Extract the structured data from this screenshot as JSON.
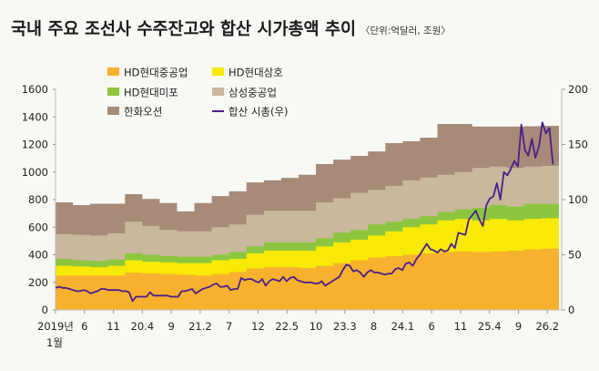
{
  "chart_data": {
    "type": "area",
    "title": "국내 주요 조선사 수주잔고와 합산 시가총액 추이",
    "subtitle": "〈단위:억달러, 조원〉",
    "x_start": 2019.0,
    "x_end": 2026.25,
    "x_tick_labels": [
      "2019년",
      "6",
      "11",
      "20.4",
      "9",
      "21.2",
      "7",
      "12",
      "22.5",
      "10",
      "23.3",
      "8",
      "24.1",
      "6",
      "11",
      "25.4",
      "9",
      "26.2"
    ],
    "x_tick_values": [
      2019.0,
      2019.417,
      2019.833,
      2020.25,
      2020.667,
      2021.083,
      2021.5,
      2021.917,
      2022.333,
      2022.75,
      2023.167,
      2023.583,
      2024.0,
      2024.417,
      2024.833,
      2025.25,
      2025.667,
      2026.083
    ],
    "x_sub_label": "1월",
    "left_axis": {
      "ylim": [
        0,
        1600
      ],
      "ticks": [
        "0",
        "200",
        "400",
        "600",
        "800",
        "1000",
        "1200",
        "1400",
        "1600"
      ]
    },
    "right_axis": {
      "ylim": [
        0,
        200
      ],
      "ticks": [
        "0",
        "50",
        "100",
        "150",
        "200"
      ]
    },
    "stack_period": "quarter",
    "stack_cumulative_tops": {
      "HD현대중공업": [
        250,
        250,
        250,
        250,
        270,
        265,
        260,
        255,
        250,
        260,
        275,
        300,
        310,
        310,
        305,
        320,
        340,
        360,
        380,
        390,
        400,
        410,
        420,
        425,
        420,
        425,
        430,
        440,
        445
      ],
      "HD현대삼호": [
        320,
        315,
        310,
        320,
        360,
        350,
        345,
        340,
        340,
        360,
        370,
        410,
        430,
        430,
        430,
        460,
        490,
        510,
        540,
        570,
        600,
        620,
        650,
        660,
        650,
        660,
        650,
        660,
        665
      ],
      "HD현대미포": [
        370,
        360,
        355,
        365,
        410,
        400,
        390,
        385,
        385,
        400,
        420,
        460,
        490,
        490,
        490,
        520,
        560,
        580,
        620,
        640,
        660,
        680,
        710,
        730,
        740,
        760,
        750,
        770,
        770
      ],
      "삼성중공업": [
        550,
        545,
        540,
        555,
        640,
        610,
        580,
        570,
        570,
        600,
        620,
        690,
        720,
        720,
        720,
        780,
        810,
        850,
        870,
        900,
        940,
        960,
        980,
        1000,
        1030,
        1040,
        1030,
        1040,
        1045
      ],
      "한화오션": [
        780,
        760,
        770,
        770,
        840,
        805,
        775,
        715,
        775,
        826,
        860,
        925,
        940,
        958,
        980,
        1058,
        1090,
        1117,
        1150,
        1210,
        1223,
        1250,
        1349,
        1349,
        1330,
        1330,
        1330,
        1332,
        1335
      ]
    },
    "series": [
      {
        "name": "HD현대중공업",
        "color": "#F7B12E"
      },
      {
        "name": "HD현대삼호",
        "color": "#F8EA05"
      },
      {
        "name": "HD현대미포",
        "color": "#8CC63F"
      },
      {
        "name": "삼성중공업",
        "color": "#C9B89C"
      },
      {
        "name": "한화오션",
        "color": "#A68B78"
      }
    ],
    "line": {
      "name": "합산 시총(우)",
      "color": "#4B1E8C",
      "axis": "right",
      "values": [
        20,
        21,
        20,
        20,
        19,
        18,
        17,
        17,
        18,
        17,
        15,
        16,
        17,
        19,
        19,
        18,
        18,
        18,
        18,
        17,
        17,
        16,
        8,
        12,
        12,
        12,
        12,
        16,
        13,
        13,
        13,
        13,
        13,
        12,
        12,
        12,
        17,
        17,
        18,
        19,
        15,
        17,
        19,
        20,
        21,
        23,
        24,
        21,
        21,
        22,
        18,
        19,
        19,
        29,
        27,
        28,
        28,
        26,
        25,
        28,
        22,
        26,
        28,
        27,
        26,
        30,
        26,
        29,
        30,
        27,
        26,
        25,
        25,
        25,
        24,
        24,
        26,
        22,
        24,
        26,
        28,
        30,
        36,
        41,
        40,
        35,
        36,
        34,
        30,
        34,
        36,
        34,
        34,
        33,
        32,
        33,
        33,
        37,
        38,
        36,
        42,
        43,
        40,
        46,
        50,
        55,
        60,
        55,
        54,
        52,
        55,
        53,
        54,
        60,
        56,
        70,
        69,
        68,
        82,
        86,
        90,
        82,
        76,
        95,
        101,
        103,
        115,
        100,
        125,
        122,
        128,
        135,
        130,
        168,
        145,
        140,
        155,
        138,
        148,
        170,
        160,
        165,
        132
      ]
    }
  },
  "legend": [
    "HD현대중공업",
    "HD현대삼호",
    "HD현대미포",
    "삼성중공업",
    "한화오션",
    "합산 시총(우)"
  ]
}
